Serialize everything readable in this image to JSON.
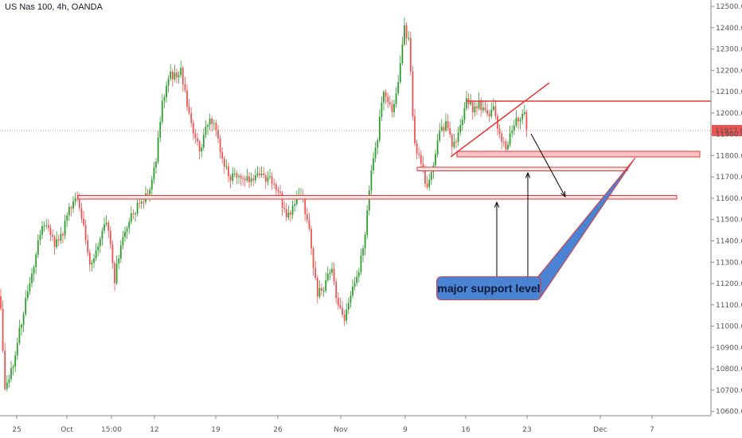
{
  "header": {
    "title": "US Nas 100, 4h, OANDA"
  },
  "callout": {
    "label": "major support level"
  },
  "price_label": {
    "value": "11917.6"
  },
  "colors": {
    "up": "#26a69a",
    "up_alt": "#2e9c2e",
    "down": "#ef5350",
    "annotation": "#e53935",
    "callout_bg": "#4a82d4"
  },
  "chart_data": {
    "type": "candlestick",
    "title": "US Nas 100, 4h, OANDA",
    "ylim": [
      10580,
      12530
    ],
    "y_ticks": [
      10600,
      10700,
      10800,
      10900,
      11000,
      11100,
      11200,
      11300,
      11400,
      11500,
      11600,
      11700,
      11800,
      11900,
      12000,
      12100,
      12200,
      12300,
      12400,
      12500
    ],
    "y_tick_labels": [
      "10600.0",
      "10700.0",
      "10800.0",
      "10900.0",
      "11000.0",
      "11100.0",
      "11200.0",
      "11300.0",
      "11400.0",
      "11500.0",
      "11600.0",
      "11700.0",
      "11800.0",
      "11900.0",
      "12000.0",
      "12100.0",
      "12200.0",
      "12300.0",
      "12400.0",
      "12500.0"
    ],
    "x_tick_labels": [
      "25",
      "Oct",
      "15:00",
      "12",
      "19",
      "26",
      "Nov",
      "9",
      "16",
      "23",
      "Dec",
      "7"
    ],
    "current_price": 11917.6,
    "price_path": [
      [
        0,
        11140
      ],
      [
        6,
        10680
      ],
      [
        12,
        10760
      ],
      [
        20,
        10880
      ],
      [
        28,
        11050
      ],
      [
        38,
        11200
      ],
      [
        46,
        11370
      ],
      [
        54,
        11480
      ],
      [
        62,
        11450
      ],
      [
        70,
        11380
      ],
      [
        78,
        11430
      ],
      [
        86,
        11560
      ],
      [
        96,
        11600
      ],
      [
        104,
        11480
      ],
      [
        112,
        11300
      ],
      [
        120,
        11330
      ],
      [
        128,
        11460
      ],
      [
        136,
        11470
      ],
      [
        144,
        11220
      ],
      [
        152,
        11380
      ],
      [
        160,
        11480
      ],
      [
        168,
        11540
      ],
      [
        176,
        11580
      ],
      [
        186,
        11620
      ],
      [
        196,
        11780
      ],
      [
        204,
        12050
      ],
      [
        212,
        12180
      ],
      [
        220,
        12170
      ],
      [
        228,
        12200
      ],
      [
        236,
        12000
      ],
      [
        244,
        11900
      ],
      [
        252,
        11830
      ],
      [
        262,
        11980
      ],
      [
        270,
        11960
      ],
      [
        278,
        11800
      ],
      [
        288,
        11700
      ],
      [
        300,
        11720
      ],
      [
        312,
        11680
      ],
      [
        324,
        11700
      ],
      [
        338,
        11690
      ],
      [
        350,
        11640
      ],
      [
        360,
        11500
      ],
      [
        370,
        11580
      ],
      [
        380,
        11600
      ],
      [
        390,
        11410
      ],
      [
        398,
        11150
      ],
      [
        408,
        11180
      ],
      [
        416,
        11280
      ],
      [
        424,
        11100
      ],
      [
        432,
        11020
      ],
      [
        440,
        11140
      ],
      [
        450,
        11240
      ],
      [
        458,
        11420
      ],
      [
        466,
        11720
      ],
      [
        474,
        11880
      ],
      [
        482,
        12120
      ],
      [
        492,
        12000
      ],
      [
        500,
        12120
      ],
      [
        508,
        12390
      ],
      [
        514,
        12330
      ],
      [
        520,
        11850
      ],
      [
        528,
        11780
      ],
      [
        536,
        11620
      ],
      [
        544,
        11760
      ],
      [
        552,
        11900
      ],
      [
        560,
        11940
      ],
      [
        570,
        11840
      ],
      [
        578,
        11930
      ],
      [
        586,
        12050
      ],
      [
        594,
        12020
      ],
      [
        602,
        12040
      ],
      [
        612,
        11980
      ],
      [
        620,
        12010
      ],
      [
        628,
        11900
      ],
      [
        636,
        11840
      ],
      [
        644,
        11920
      ],
      [
        652,
        11990
      ],
      [
        658,
        12000
      ],
      [
        662,
        11930
      ]
    ]
  }
}
